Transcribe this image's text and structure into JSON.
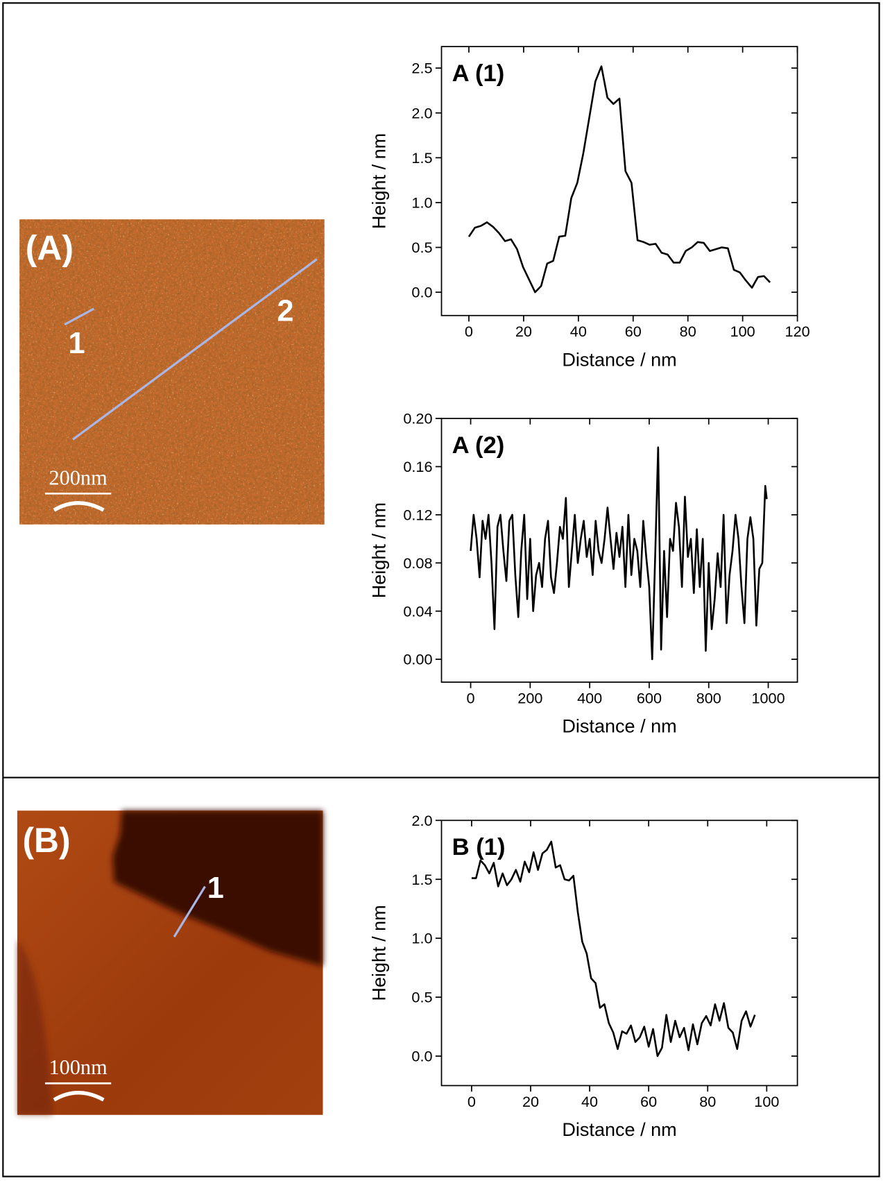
{
  "images": [
    {
      "label": "(A)",
      "markers": [
        "1",
        "2"
      ],
      "scale_bar": "200nm"
    },
    {
      "label": "(B)",
      "markers": [
        "1"
      ],
      "scale_bar": "100nm"
    }
  ],
  "chart_data": [
    {
      "type": "line",
      "title": "A (1)",
      "x_label": "Distance / nm",
      "y_label": "Height / nm",
      "color": "#000000",
      "x": [
        0,
        2.2,
        4.4,
        6.6,
        8.8,
        11,
        13.2,
        15.4,
        17.6,
        19.8,
        22,
        24.2,
        26.4,
        28.6,
        30.8,
        33,
        35.2,
        37.4,
        39.6,
        41.8,
        44,
        46.2,
        48.4,
        50.6,
        52.8,
        55,
        57.2,
        59.4,
        61.6,
        63.8,
        66,
        68.2,
        70.4,
        72.6,
        74.8,
        77,
        79.2,
        81.4,
        83.6,
        85.8,
        88,
        90.2,
        92.4,
        94.6,
        96.8,
        99,
        101.2,
        103.4,
        105.6,
        107.8,
        110
      ],
      "values": [
        0.62,
        0.72,
        0.74,
        0.78,
        0.73,
        0.66,
        0.57,
        0.59,
        0.48,
        0.28,
        0.14,
        0.0,
        0.07,
        0.32,
        0.35,
        0.62,
        0.63,
        1.05,
        1.22,
        1.55,
        1.95,
        2.35,
        2.52,
        2.17,
        2.1,
        2.16,
        1.35,
        1.22,
        0.58,
        0.56,
        0.53,
        0.54,
        0.44,
        0.42,
        0.33,
        0.33,
        0.46,
        0.5,
        0.56,
        0.55,
        0.46,
        0.48,
        0.5,
        0.49,
        0.25,
        0.22,
        0.13,
        0.05,
        0.17,
        0.18,
        0.11
      ],
      "xlim": [
        -10,
        120
      ],
      "xticks": [
        0,
        20,
        40,
        60,
        80,
        100,
        120
      ],
      "ylim": [
        -0.26,
        2.74
      ],
      "yticks": [
        {
          "value": 0,
          "label": "0.0"
        },
        0.5,
        {
          "value": 1,
          "label": "1.0"
        },
        1.5,
        {
          "value": 2,
          "label": "2.0"
        },
        2.5
      ]
    },
    {
      "type": "line",
      "title": "A (2)",
      "x_label": "Distance / nm",
      "y_label": "Height / nm",
      "color": "#000000",
      "x": [
        0,
        10,
        20,
        30,
        40,
        50,
        60,
        70,
        80,
        90,
        100,
        110,
        120,
        130,
        140,
        150,
        160,
        170,
        180,
        190,
        200,
        210,
        220,
        230,
        240,
        250,
        260,
        270,
        280,
        290,
        300,
        310,
        320,
        330,
        340,
        350,
        360,
        370,
        380,
        390,
        400,
        410,
        420,
        430,
        440,
        450,
        460,
        470,
        480,
        490,
        500,
        510,
        520,
        530,
        540,
        550,
        560,
        570,
        580,
        590,
        600,
        610,
        620,
        630,
        640,
        650,
        660,
        670,
        680,
        690,
        700,
        710,
        720,
        730,
        740,
        750,
        760,
        770,
        780,
        790,
        800,
        810,
        820,
        830,
        840,
        850,
        860,
        870,
        880,
        890,
        900,
        910,
        920,
        930,
        940,
        950,
        960,
        970,
        980,
        990,
        995
      ],
      "values": [
        0.09,
        0.12,
        0.1,
        0.068,
        0.115,
        0.1,
        0.12,
        0.08,
        0.025,
        0.11,
        0.12,
        0.09,
        0.065,
        0.115,
        0.12,
        0.07,
        0.035,
        0.09,
        0.12,
        0.05,
        0.1,
        0.04,
        0.07,
        0.08,
        0.06,
        0.1,
        0.115,
        0.068,
        0.055,
        0.08,
        0.11,
        0.1,
        0.134,
        0.06,
        0.09,
        0.12,
        0.08,
        0.1,
        0.115,
        0.085,
        0.1,
        0.07,
        0.115,
        0.09,
        0.08,
        0.1,
        0.126,
        0.1,
        0.075,
        0.105,
        0.085,
        0.11,
        0.06,
        0.12,
        0.07,
        0.1,
        0.09,
        0.06,
        0.115,
        0.085,
        0.06,
        0.0,
        0.085,
        0.176,
        0.008,
        0.09,
        0.035,
        0.1,
        0.09,
        0.13,
        0.11,
        0.06,
        0.135,
        0.085,
        0.1,
        0.055,
        0.108,
        0.06,
        0.1,
        0.007,
        0.08,
        0.025,
        0.05,
        0.088,
        0.06,
        0.12,
        0.03,
        0.07,
        0.09,
        0.12,
        0.1,
        0.06,
        0.03,
        0.1,
        0.118,
        0.1,
        0.028,
        0.075,
        0.08,
        0.144,
        0.133
      ],
      "xlim": [
        -98,
        1098
      ],
      "xticks": [
        0,
        200,
        400,
        600,
        800,
        1000
      ],
      "ylim": [
        -0.019,
        0.2
      ],
      "yticks": [
        {
          "value": 0,
          "label": "0.00"
        },
        0.04,
        0.08,
        0.12,
        0.16,
        {
          "value": 0.2,
          "label": "0.20"
        }
      ]
    },
    {
      "type": "line",
      "title": "B (1)",
      "x_label": "Distance / nm",
      "y_label": "Height / nm",
      "color": "#000000",
      "x": [
        0,
        1.5,
        3,
        4.5,
        6,
        7.5,
        9,
        10.5,
        12,
        13.5,
        15,
        16.5,
        18,
        19.5,
        21,
        22.5,
        24,
        25.5,
        27,
        28.5,
        30,
        31.5,
        33,
        34.5,
        36,
        37.5,
        39,
        40.5,
        42,
        43.5,
        45,
        46.5,
        48,
        49.5,
        51,
        52.5,
        54,
        55.5,
        57,
        58.5,
        60,
        61.5,
        63,
        64.5,
        66,
        67.5,
        69,
        70.5,
        72,
        73.5,
        75,
        76.5,
        78,
        79.5,
        81,
        82.5,
        84,
        85.5,
        87,
        88.5,
        90,
        91.5,
        93,
        94.5,
        96
      ],
      "values": [
        1.51,
        1.51,
        1.66,
        1.62,
        1.55,
        1.64,
        1.44,
        1.55,
        1.45,
        1.5,
        1.58,
        1.48,
        1.65,
        1.56,
        1.73,
        1.58,
        1.72,
        1.75,
        1.82,
        1.6,
        1.62,
        1.5,
        1.49,
        1.53,
        1.22,
        0.97,
        0.87,
        0.66,
        0.62,
        0.41,
        0.44,
        0.28,
        0.2,
        0.06,
        0.21,
        0.19,
        0.26,
        0.12,
        0.16,
        0.25,
        0.08,
        0.23,
        0.0,
        0.07,
        0.35,
        0.12,
        0.3,
        0.16,
        0.24,
        0.05,
        0.27,
        0.1,
        0.28,
        0.34,
        0.26,
        0.44,
        0.3,
        0.45,
        0.24,
        0.2,
        0.06,
        0.3,
        0.38,
        0.25,
        0.35
      ],
      "xlim": [
        -10.2,
        110.4
      ],
      "xticks": [
        0,
        20,
        40,
        60,
        80,
        100
      ],
      "ylim": [
        -0.25,
        2.0
      ],
      "yticks": [
        {
          "value": 0,
          "label": "0.0"
        },
        0.5,
        {
          "value": 1,
          "label": "1.0"
        },
        1.5,
        {
          "value": 2,
          "label": "2.0"
        }
      ]
    }
  ]
}
